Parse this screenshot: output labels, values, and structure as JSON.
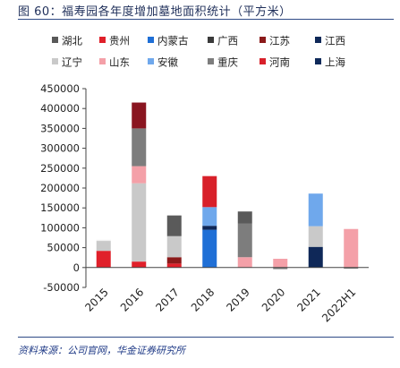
{
  "header": {
    "title": "图 60：福寿园各年度增加墓地面积统计（平方米）"
  },
  "footer": {
    "source": "资料来源：公司官网，华金证券研究所"
  },
  "chart_data": {
    "type": "bar",
    "stacked": true,
    "categories": [
      "2015",
      "2016",
      "2017",
      "2018",
      "2019",
      "2020",
      "2021",
      "2022H1"
    ],
    "ylim": [
      -50000,
      450000
    ],
    "yticks": [
      -50000,
      0,
      50000,
      100000,
      150000,
      200000,
      250000,
      300000,
      350000,
      400000,
      450000
    ],
    "legend_position": "top",
    "grid": false,
    "series": [
      {
        "name": "湖北",
        "color": "#595959",
        "values": [
          0,
          0,
          0,
          0,
          0,
          0,
          0,
          0
        ]
      },
      {
        "name": "贵州",
        "color": "#e0202a",
        "values": [
          42000,
          15000,
          10000,
          0,
          0,
          0,
          0,
          0
        ]
      },
      {
        "name": "内蒙古",
        "color": "#1f6fd6",
        "values": [
          0,
          0,
          0,
          95000,
          0,
          0,
          0,
          0
        ]
      },
      {
        "name": "广西",
        "color": "#3a3a3a",
        "values": [
          0,
          0,
          0,
          0,
          0,
          0,
          0,
          0
        ]
      },
      {
        "name": "江苏",
        "color": "#8b1a1a",
        "values": [
          0,
          0,
          16000,
          0,
          0,
          0,
          0,
          0
        ]
      },
      {
        "name": "江西",
        "color": "#0f2858",
        "values": [
          0,
          0,
          0,
          10000,
          0,
          0,
          52000,
          0
        ]
      },
      {
        "name": "辽宁",
        "color": "#c9c9c9",
        "values": [
          25000,
          197000,
          53000,
          0,
          0,
          0,
          52000,
          0
        ]
      },
      {
        "name": "山东",
        "color": "#f4a0a8",
        "values": [
          0,
          43000,
          0,
          0,
          26000,
          22000,
          0,
          97000
        ]
      },
      {
        "name": "安徽",
        "color": "#6fa8ec",
        "values": [
          0,
          0,
          0,
          47000,
          0,
          0,
          82000,
          0
        ]
      },
      {
        "name": "重庆",
        "color": "#7d7d7d",
        "values": [
          0,
          95000,
          0,
          0,
          85000,
          -4000,
          0,
          -3000
        ]
      },
      {
        "name": "河南",
        "color": "#d8202a",
        "values": [
          0,
          0,
          0,
          78000,
          0,
          0,
          0,
          0
        ]
      },
      {
        "name": "上海",
        "color": "#0f2a5a",
        "values": [
          0,
          0,
          0,
          0,
          0,
          0,
          0,
          0
        ]
      },
      {
        "name": "",
        "color": "#5a5a5a",
        "values": [
          0,
          0,
          52000,
          0,
          30000,
          0,
          0,
          0
        ]
      },
      {
        "name": "",
        "color": "#f2f2f2",
        "values": [
          3000,
          0,
          0,
          0,
          0,
          0,
          0,
          0
        ]
      },
      {
        "name": "",
        "color": "#8a1520",
        "values": [
          0,
          65000,
          0,
          0,
          0,
          0,
          0,
          0
        ]
      }
    ]
  }
}
